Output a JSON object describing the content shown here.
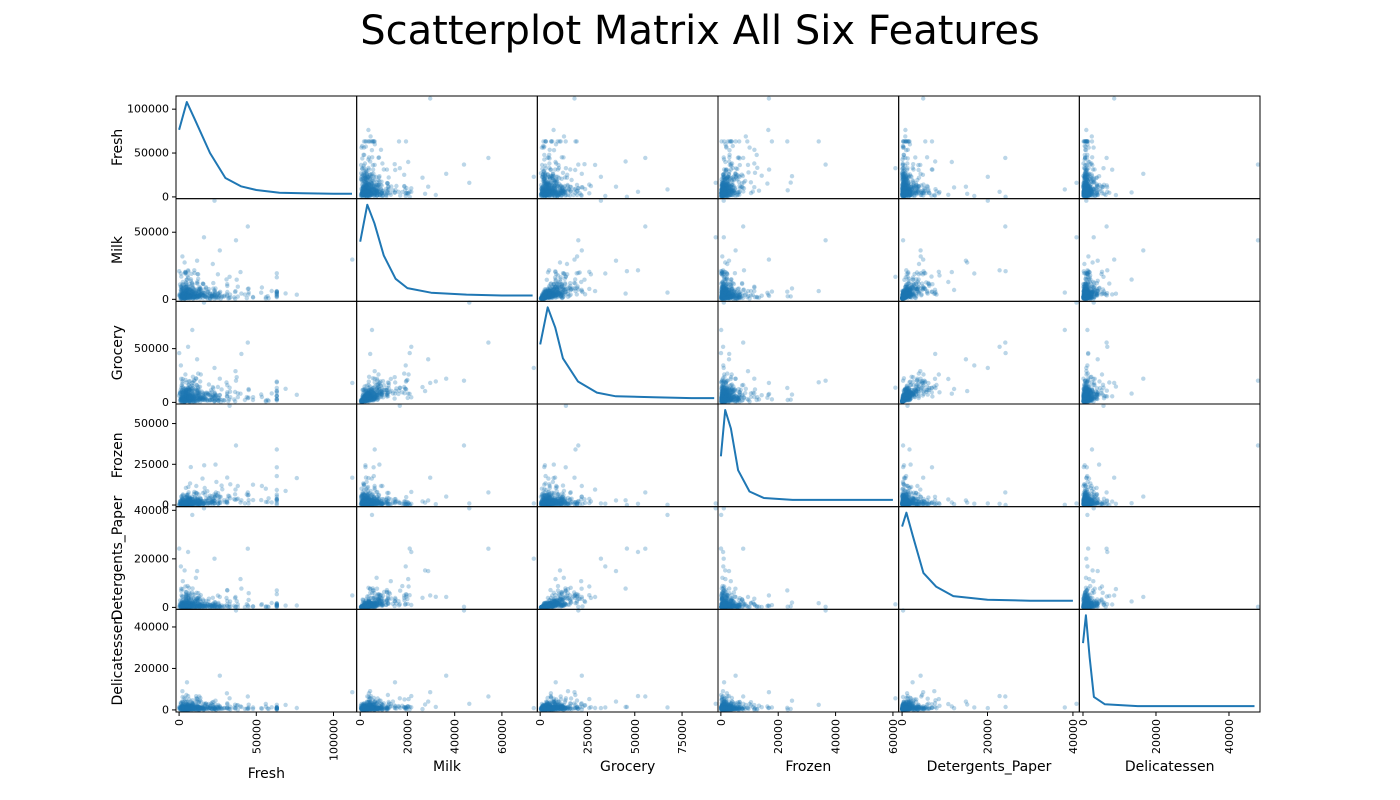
{
  "title": "Scatterplot Matrix All Six Features",
  "chart_data": {
    "type": "scatter",
    "title": "Scatterplot Matrix All Six Features",
    "kind": "scatter-matrix",
    "diagonal": "kde",
    "features": [
      "Fresh",
      "Milk",
      "Grocery",
      "Frozen",
      "Detergents_Paper",
      "Delicatessen"
    ],
    "ranges": {
      "Fresh": [
        -2000,
        115000
      ],
      "Milk": [
        -1500,
        75000
      ],
      "Grocery": [
        -1500,
        94000
      ],
      "Frozen": [
        -1000,
        62000
      ],
      "Detergents_Paper": [
        -800,
        41500
      ],
      "Delicatessen": [
        -1000,
        48500
      ]
    },
    "x_ticks": {
      "Fresh": [
        0,
        50000,
        100000
      ],
      "Milk": [
        0,
        20000,
        40000,
        60000
      ],
      "Grocery": [
        0,
        25000,
        50000,
        75000
      ],
      "Frozen": [
        0,
        20000,
        40000,
        60000
      ],
      "Detergents_Paper": [
        0,
        20000,
        40000
      ],
      "Delicatessen": [
        0,
        20000,
        40000
      ]
    },
    "y_ticks": {
      "Fresh": [
        0,
        50000,
        100000
      ],
      "Milk": [
        0,
        50000
      ],
      "Grocery": [
        0,
        50000
      ],
      "Frozen": [
        0,
        25000,
        50000
      ],
      "Detergents_Paper": [
        0,
        20000,
        40000
      ],
      "Delicatessen": [
        0,
        20000,
        40000
      ]
    },
    "kde_curves": {
      "Fresh": [
        [
          0,
          0.7
        ],
        [
          5000,
          1.0
        ],
        [
          10000,
          0.82
        ],
        [
          20000,
          0.45
        ],
        [
          30000,
          0.18
        ],
        [
          40000,
          0.09
        ],
        [
          50000,
          0.05
        ],
        [
          65000,
          0.02
        ],
        [
          80000,
          0.015
        ],
        [
          100000,
          0.01
        ],
        [
          112000,
          0.01
        ]
      ],
      "Milk": [
        [
          0,
          0.6
        ],
        [
          3000,
          1.0
        ],
        [
          6000,
          0.8
        ],
        [
          10000,
          0.45
        ],
        [
          15000,
          0.2
        ],
        [
          20000,
          0.1
        ],
        [
          30000,
          0.05
        ],
        [
          45000,
          0.03
        ],
        [
          60000,
          0.02
        ],
        [
          73000,
          0.02
        ]
      ],
      "Grocery": [
        [
          0,
          0.6
        ],
        [
          4000,
          1.0
        ],
        [
          8000,
          0.78
        ],
        [
          12000,
          0.45
        ],
        [
          20000,
          0.2
        ],
        [
          30000,
          0.08
        ],
        [
          40000,
          0.04
        ],
        [
          60000,
          0.03
        ],
        [
          80000,
          0.02
        ],
        [
          92000,
          0.02
        ]
      ],
      "Frozen": [
        [
          0,
          0.5
        ],
        [
          1500,
          1.0
        ],
        [
          3500,
          0.8
        ],
        [
          6000,
          0.35
        ],
        [
          10000,
          0.12
        ],
        [
          15000,
          0.05
        ],
        [
          25000,
          0.03
        ],
        [
          40000,
          0.03
        ],
        [
          60000,
          0.03
        ]
      ],
      "Detergents_Paper": [
        [
          0,
          0.85
        ],
        [
          1000,
          1.0
        ],
        [
          2500,
          0.75
        ],
        [
          5000,
          0.35
        ],
        [
          8000,
          0.2
        ],
        [
          12000,
          0.1
        ],
        [
          20000,
          0.06
        ],
        [
          30000,
          0.05
        ],
        [
          40000,
          0.05
        ]
      ],
      "Delicatessen": [
        [
          0,
          0.7
        ],
        [
          800,
          1.0
        ],
        [
          1800,
          0.55
        ],
        [
          3000,
          0.12
        ],
        [
          6000,
          0.04
        ],
        [
          15000,
          0.02
        ],
        [
          30000,
          0.02
        ],
        [
          47000,
          0.02
        ]
      ]
    },
    "outliers": [
      {
        "Fresh": 112151,
        "Milk": 29627,
        "Grocery": 18148,
        "Frozen": 16745,
        "Detergents_Paper": 4948,
        "Delicatessen": 8550
      },
      {
        "Fresh": 76237,
        "Milk": 3473,
        "Grocery": 7102,
        "Frozen": 16538,
        "Detergents_Paper": 778,
        "Delicatessen": 918
      },
      {
        "Fresh": 36847,
        "Milk": 43950,
        "Grocery": 20170,
        "Frozen": 36534,
        "Detergents_Paper": 239,
        "Delicatessen": 47943
      },
      {
        "Fresh": 22925,
        "Milk": 73498,
        "Grocery": 32114,
        "Frozen": 987,
        "Detergents_Paper": 20070,
        "Delicatessen": 903
      },
      {
        "Fresh": 26373,
        "Milk": 36423,
        "Grocery": 22019,
        "Frozen": 5154,
        "Detergents_Paper": 4337,
        "Delicatessen": 16523
      },
      {
        "Fresh": 16117,
        "Milk": 46197,
        "Grocery": 92780,
        "Frozen": 1026,
        "Detergents_Paper": 40827,
        "Delicatessen": 2944
      },
      {
        "Fresh": 85,
        "Milk": 20959,
        "Grocery": 45828,
        "Frozen": 36,
        "Detergents_Paper": 24231,
        "Delicatessen": 1423
      },
      {
        "Fresh": 44466,
        "Milk": 54259,
        "Grocery": 55571,
        "Frozen": 7782,
        "Detergents_Paper": 24171,
        "Delicatessen": 6465
      },
      {
        "Fresh": 4113,
        "Milk": 20484,
        "Grocery": 25957,
        "Frozen": 1158,
        "Detergents_Paper": 8604,
        "Delicatessen": 5206
      },
      {
        "Fresh": 56159,
        "Milk": 555,
        "Grocery": 902,
        "Frozen": 10002,
        "Detergents_Paper": 212,
        "Delicatessen": 2916
      },
      {
        "Fresh": 68951,
        "Milk": 4411,
        "Grocery": 12609,
        "Frozen": 8692,
        "Detergents_Paper": 751,
        "Delicatessen": 2406
      },
      {
        "Fresh": 32717,
        "Milk": 16784,
        "Grocery": 13626,
        "Frozen": 60869,
        "Detergents_Paper": 1272,
        "Delicatessen": 5609
      },
      {
        "Fresh": 8565,
        "Milk": 4980,
        "Grocery": 67298,
        "Frozen": 131,
        "Detergents_Paper": 38102,
        "Delicatessen": 1215
      },
      {
        "Fresh": 3,
        "Milk": 2920,
        "Grocery": 6252,
        "Frozen": 440,
        "Detergents_Paper": 223,
        "Delicatessen": 709
      },
      {
        "Fresh": 53205,
        "Milk": 4959,
        "Grocery": 7336,
        "Frozen": 3012,
        "Detergents_Paper": 967,
        "Delicatessen": 818
      }
    ]
  }
}
